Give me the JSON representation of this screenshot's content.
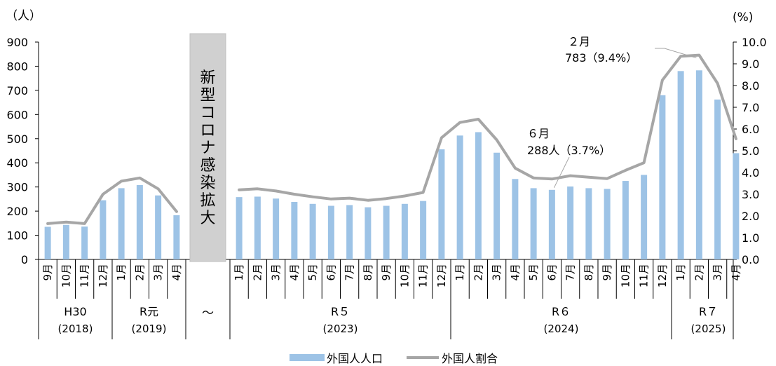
{
  "chart_data": {
    "type": "bar+line",
    "left_axis_unit": "（人）",
    "right_axis_unit": "(%)",
    "left_ylim": [
      0,
      900
    ],
    "left_ticks": [
      "0",
      "100",
      "200",
      "300",
      "400",
      "500",
      "600",
      "700",
      "800",
      "900"
    ],
    "right_ylim": [
      0,
      10
    ],
    "right_ticks": [
      "0.0",
      "1.0",
      "2.0",
      "3.0",
      "4.0",
      "5.0",
      "6.0",
      "7.0",
      "8.0",
      "9.0",
      "10.0"
    ],
    "covid_label": "新型コロナ感染拡大",
    "gap_label": "～",
    "groups": [
      {
        "era": "H30",
        "year": "(2018)",
        "months": [
          "9月",
          "10月",
          "11月",
          "12月"
        ],
        "population": [
          135,
          143,
          136,
          245
        ],
        "ratio": [
          1.65,
          1.72,
          1.65,
          3.0
        ]
      },
      {
        "era": "R元",
        "year": "(2019)",
        "months": [
          "1月",
          "2月",
          "3月",
          "4月"
        ],
        "population": [
          295,
          308,
          265,
          183
        ],
        "ratio": [
          3.6,
          3.75,
          3.25,
          2.2
        ]
      },
      {
        "era": "R５",
        "year": "(2023)",
        "months": [
          "1月",
          "2月",
          "3月",
          "4月",
          "5月",
          "6月",
          "7月",
          "8月",
          "9月",
          "10月",
          "11月",
          "12月"
        ],
        "population": [
          258,
          260,
          252,
          238,
          230,
          222,
          225,
          216,
          222,
          230,
          242,
          456
        ],
        "ratio": [
          3.2,
          3.25,
          3.15,
          3.0,
          2.88,
          2.78,
          2.82,
          2.72,
          2.8,
          2.92,
          3.08,
          5.6
        ]
      },
      {
        "era": "R６",
        "year": "(2024)",
        "months": [
          "1月",
          "2月",
          "3月",
          "4月",
          "5月",
          "6月",
          "7月",
          "8月",
          "9月",
          "10月",
          "11月",
          "12月"
        ],
        "population": [
          513,
          527,
          442,
          333,
          295,
          288,
          302,
          295,
          292,
          325,
          350,
          680
        ],
        "ratio": [
          6.3,
          6.45,
          5.5,
          4.2,
          3.75,
          3.7,
          3.85,
          3.78,
          3.72,
          4.1,
          4.45,
          8.25
        ]
      },
      {
        "era": "R７",
        "year": "(2025)",
        "months": [
          "1月",
          "2月",
          "3月",
          "4月"
        ],
        "population": [
          780,
          783,
          662,
          440
        ],
        "ratio": [
          9.35,
          9.4,
          8.1,
          5.55
        ]
      }
    ],
    "legend": [
      "外国人人口",
      "外国人割合"
    ],
    "annotations": [
      {
        "line1": "６月",
        "line2": "288人（3.7%）"
      },
      {
        "line1": "２月",
        "line2": "783（9.4%）"
      }
    ],
    "colors": {
      "bar": "#9dc3e6",
      "line": "#a6a6a6",
      "covid_box": "#d0d0d0"
    }
  }
}
